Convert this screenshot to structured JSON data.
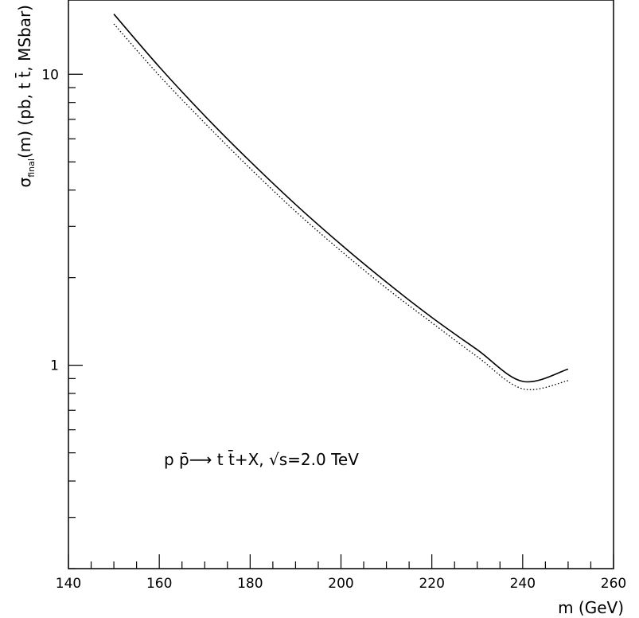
{
  "chart_data": {
    "type": "line",
    "title": "",
    "xlabel": "m (GeV)",
    "ylabel": {
      "sigma": "σ",
      "subscript": "final",
      "rest": "(m) (pb, t t̄, MSbar)"
    },
    "xlim": [
      140,
      260
    ],
    "ylim": [
      0.2,
      18
    ],
    "yscale": "log",
    "grid": false,
    "x_ticks": [
      140,
      160,
      180,
      200,
      220,
      240,
      260
    ],
    "x_tick_labels": [
      "140",
      "160",
      "180",
      "200",
      "220",
      "240",
      "260"
    ],
    "y_ticks": [
      1,
      10
    ],
    "y_tick_labels": [
      "1",
      "10"
    ],
    "annotation": "p p̄⟶ t t̄+X, √s=2.0 TeV",
    "series": [
      {
        "style": "solid",
        "color": "#000000",
        "x": [
          150,
          160,
          170,
          180,
          190,
          200,
          210,
          220,
          230,
          240,
          250
        ],
        "y": [
          16.1,
          10.6,
          7.2,
          5.02,
          3.57,
          2.6,
          1.93,
          1.46,
          1.13,
          0.88,
          0.97
        ]
      },
      {
        "style": "dotted",
        "color": "#000000",
        "x": [
          150,
          160,
          170,
          180,
          190,
          200,
          210,
          220,
          230,
          240,
          250
        ],
        "y": [
          14.9,
          9.9,
          6.8,
          4.75,
          3.38,
          2.47,
          1.84,
          1.4,
          1.07,
          0.83,
          0.885
        ]
      }
    ]
  }
}
